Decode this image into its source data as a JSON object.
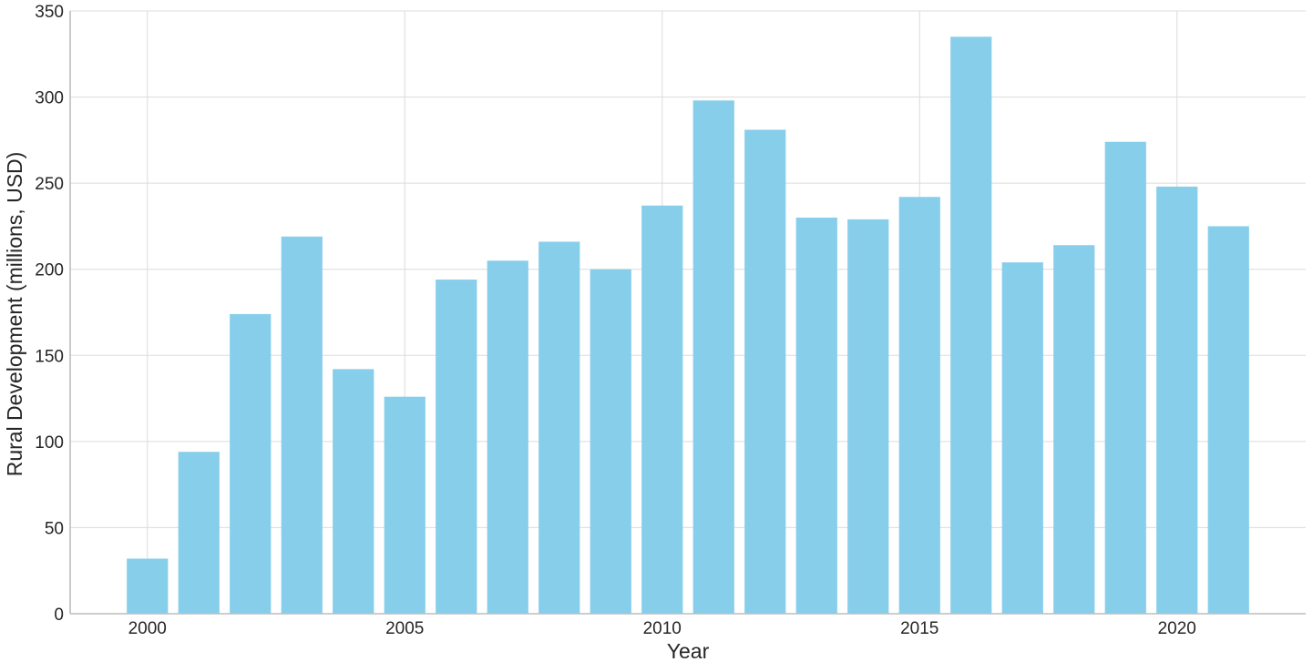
{
  "chart_data": {
    "type": "bar",
    "title": "",
    "xlabel": "Year",
    "ylabel": "Rural Development (millions, USD)",
    "categories": [
      2000,
      2001,
      2002,
      2003,
      2004,
      2005,
      2006,
      2007,
      2008,
      2009,
      2010,
      2011,
      2012,
      2013,
      2014,
      2015,
      2016,
      2017,
      2018,
      2019,
      2020,
      2021
    ],
    "values": [
      32,
      94,
      174,
      219,
      142,
      126,
      194,
      205,
      216,
      200,
      237,
      298,
      281,
      230,
      229,
      242,
      335,
      204,
      214,
      274,
      248,
      225
    ],
    "xlim": [
      1998.5,
      2022.5
    ],
    "ylim": [
      0,
      350
    ],
    "yticks": [
      0,
      50,
      100,
      150,
      200,
      250,
      300,
      350
    ],
    "xticks": [
      2000,
      2005,
      2010,
      2015,
      2020
    ],
    "bar_color": "#87ceeb",
    "grid": true,
    "legend": "none"
  }
}
